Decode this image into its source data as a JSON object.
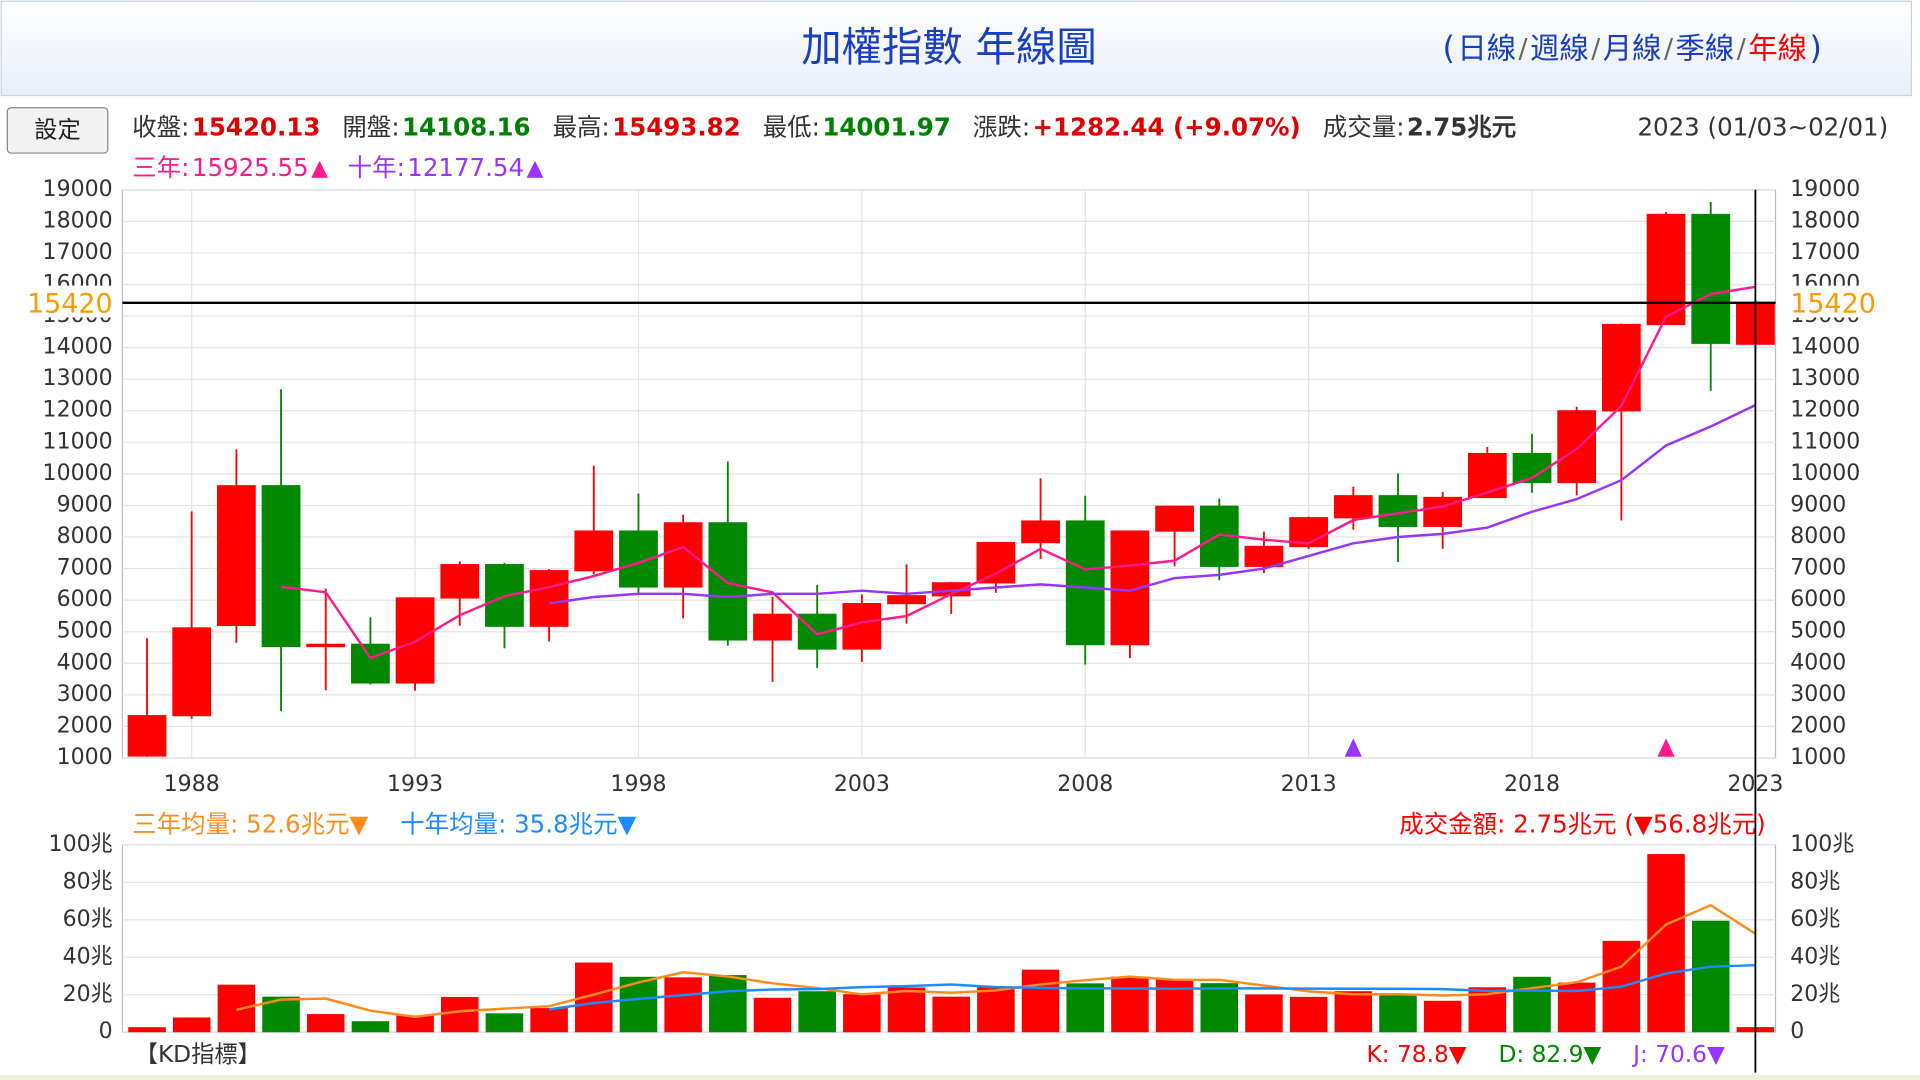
{
  "header": {
    "title": "加權指數 年線圖",
    "open": "(",
    "close": ")",
    "separator": "/",
    "links": [
      {
        "text": "日線",
        "color": "#1a3fbf"
      },
      {
        "text": "週線",
        "color": "#1a3fbf"
      },
      {
        "text": "月線",
        "color": "#1a3fbf"
      },
      {
        "text": "季線",
        "color": "#1a3fbf"
      },
      {
        "text": "年線",
        "color": "#ff0000"
      }
    ]
  },
  "settings_button": "設定",
  "quote": [
    {
      "label": "收盤:",
      "value": "15420.13",
      "color": "#e00000"
    },
    {
      "label": "開盤:",
      "value": "14108.16",
      "color": "#008000"
    },
    {
      "label": "最高:",
      "value": "15493.82",
      "color": "#e00000"
    },
    {
      "label": "最低:",
      "value": "14001.97",
      "color": "#008000"
    },
    {
      "label": "漲跌:",
      "value": "+1282.44  (+9.07%)",
      "color": "#e00000"
    },
    {
      "label": "成交量:",
      "value": "2.75兆元",
      "color": "#333333"
    }
  ],
  "date_range": "2023 (01/03~02/01)",
  "chart_data": [
    {
      "type": "candlestick",
      "ylim": [
        1000,
        19000
      ],
      "yticks": [
        1000,
        2000,
        3000,
        4000,
        5000,
        6000,
        7000,
        8000,
        9000,
        10000,
        11000,
        12000,
        13000,
        14000,
        15000,
        16000,
        17000,
        18000,
        19000
      ],
      "xlim": [
        1986.45,
        2023.45
      ],
      "xticks": [
        1988,
        1993,
        1998,
        2003,
        2008,
        2013,
        2018,
        2023
      ],
      "grid": true,
      "up_color": "#ff0000",
      "down_color": "#008800",
      "x": [
        1987,
        1988,
        1989,
        1990,
        1991,
        1992,
        1993,
        1994,
        1995,
        1996,
        1997,
        1998,
        1999,
        2000,
        2001,
        2002,
        2003,
        2004,
        2005,
        2006,
        2007,
        2008,
        2009,
        2010,
        2011,
        2012,
        2013,
        2014,
        2015,
        2016,
        2017,
        2018,
        2019,
        2020,
        2021,
        2022,
        2023
      ],
      "open": [
        1063,
        2341,
        5200,
        9624,
        4530,
        4600,
        3377,
        6070,
        7124,
        5173,
        6933,
        8187,
        6418,
        8448,
        4739,
        5551,
        4452,
        5890,
        6139,
        6548,
        7823,
        8506,
        4591,
        8188,
        8973,
        7072,
        7700,
        8611,
        9307,
        8338,
        9253,
        10643,
        9727,
        11997,
        14732,
        18218,
        14108
      ],
      "high": [
        4796,
        8813,
        10773,
        12682,
        6365,
        5459,
        6070,
        7228,
        7180,
        6982,
        10256,
        9378,
        8710,
        10393,
        6104,
        6484,
        6182,
        7135,
        6575,
        7823,
        9859,
        9309,
        8188,
        8990,
        9220,
        8170,
        8647,
        9593,
        10014,
        9430,
        10854,
        11270,
        12125,
        14760,
        18291,
        18619,
        15494
      ],
      "low": [
        1039,
        2241,
        4645,
        2485,
        3142,
        3327,
        3135,
        5194,
        4474,
        4690,
        6820,
        6219,
        5422,
        4555,
        3411,
        3850,
        4044,
        5255,
        5565,
        6232,
        7306,
        3955,
        4164,
        7071,
        6633,
        6857,
        7617,
        8230,
        7203,
        7627,
        9254,
        9400,
        9319,
        8523,
        14732,
        12629,
        14002
      ],
      "close": [
        2339,
        5119,
        9624,
        4530,
        4600,
        3377,
        6070,
        7124,
        5173,
        6933,
        8187,
        6418,
        8448,
        4739,
        5551,
        4452,
        5890,
        6139,
        6548,
        7823,
        8506,
        4591,
        8188,
        8973,
        7072,
        7700,
        8611,
        9307,
        8338,
        9253,
        10643,
        9727,
        11997,
        14732,
        18218,
        14137,
        15420
      ],
      "series": [
        {
          "name": "三年:",
          "value_text": "15925.55",
          "arrow": "▲",
          "color": "#ff1a8c",
          "x": [
            1990,
            1991,
            1992,
            1993,
            1994,
            1995,
            1996,
            1997,
            1998,
            1999,
            2000,
            2001,
            2002,
            2003,
            2004,
            2005,
            2006,
            2007,
            2008,
            2009,
            2010,
            2011,
            2012,
            2013,
            2014,
            2015,
            2016,
            2017,
            2018,
            2019,
            2020,
            2021,
            2022,
            2023
          ],
          "values": [
            6424,
            6251,
            4169,
            4682,
            5524,
            6122,
            6410,
            6764,
            7179,
            7684,
            6535,
            6246,
            4914,
            5298,
            5494,
            6192,
            6837,
            7626,
            6973,
            7095,
            7251,
            8078,
            7915,
            7794,
            8539,
            8752,
            8966,
            9411,
            9874,
            10789,
            12152,
            14982,
            15696,
            15925.55
          ]
        },
        {
          "name": "十年:",
          "value_text": "12177.54",
          "arrow": "▲",
          "color": "#9933ff",
          "x": [
            1996,
            1997,
            1998,
            1999,
            2000,
            2001,
            2002,
            2003,
            2004,
            2005,
            2006,
            2007,
            2008,
            2009,
            2010,
            2011,
            2012,
            2013,
            2014,
            2015,
            2016,
            2017,
            2018,
            2019,
            2020,
            2021,
            2022,
            2023
          ],
          "values": [
            5900,
            6100,
            6200,
            6200,
            6100,
            6200,
            6200,
            6300,
            6200,
            6300,
            6400,
            6500,
            6400,
            6300,
            6700,
            6800,
            7000,
            7400,
            7800,
            8000,
            8100,
            8300,
            8800,
            9200,
            9800,
            10900,
            11500,
            12177.54
          ]
        }
      ],
      "last_price": {
        "value": 15420.13,
        "label": "15420",
        "color": "#ff9900"
      },
      "cursor_x": 2023,
      "signals": [
        {
          "x": 2014,
          "color": "#9933ff"
        },
        {
          "x": 2021,
          "color": "#ff1a8c"
        }
      ]
    },
    {
      "type": "volume",
      "ylim": [
        0,
        100
      ],
      "yticks": [
        0,
        {
          "value": 20,
          "label": "20兆"
        },
        {
          "value": 40,
          "label": "40兆"
        },
        {
          "value": 60,
          "label": "60兆"
        },
        {
          "value": 80,
          "label": "80兆"
        },
        {
          "value": 100,
          "label": "100兆"
        }
      ],
      "x": [
        1987,
        1988,
        1989,
        1990,
        1991,
        1992,
        1993,
        1994,
        1995,
        1996,
        1997,
        1998,
        1999,
        2000,
        2001,
        2002,
        2003,
        2004,
        2005,
        2006,
        2007,
        2008,
        2009,
        2010,
        2011,
        2012,
        2013,
        2014,
        2015,
        2016,
        2017,
        2018,
        2019,
        2020,
        2021,
        2022,
        2023
      ],
      "values": [
        2.7,
        7.9,
        25.4,
        19,
        9.7,
        5.9,
        9,
        18.8,
        10.1,
        12.9,
        37.2,
        29.6,
        29.3,
        30.5,
        18.4,
        21.9,
        20.3,
        23.9,
        19,
        24,
        33.4,
        26.1,
        29.7,
        28.2,
        26.2,
        20.2,
        18.9,
        21.9,
        20.2,
        16.8,
        24,
        29.6,
        26.5,
        48.8,
        95.1,
        59.5,
        2.75
      ],
      "colors": [
        "#ff0000",
        "#ff0000",
        "#ff0000",
        "#008800",
        "#ff0000",
        "#008800",
        "#ff0000",
        "#ff0000",
        "#008800",
        "#ff0000",
        "#ff0000",
        "#008800",
        "#ff0000",
        "#008800",
        "#ff0000",
        "#008800",
        "#ff0000",
        "#ff0000",
        "#ff0000",
        "#ff0000",
        "#ff0000",
        "#008800",
        "#ff0000",
        "#ff0000",
        "#008800",
        "#ff0000",
        "#ff0000",
        "#ff0000",
        "#008800",
        "#ff0000",
        "#ff0000",
        "#008800",
        "#ff0000",
        "#ff0000",
        "#ff0000",
        "#008800",
        "#ff0000"
      ],
      "series": [
        {
          "name": "三年均量: 52.6兆元▼",
          "color": "#ff8c1a",
          "x": [
            1989,
            1990,
            1991,
            1992,
            1993,
            1994,
            1995,
            1996,
            1997,
            1998,
            1999,
            2000,
            2001,
            2002,
            2003,
            2004,
            2005,
            2006,
            2007,
            2008,
            2009,
            2010,
            2011,
            2012,
            2013,
            2014,
            2015,
            2016,
            2017,
            2018,
            2019,
            2020,
            2021,
            2022,
            2023
          ],
          "values": [
            12,
            17.4,
            18,
            11.5,
            8.2,
            11.2,
            12.6,
            13.9,
            20.1,
            26.6,
            32,
            29.8,
            26.1,
            23.6,
            20.2,
            22,
            21.1,
            22.3,
            25.5,
            27.8,
            29.7,
            28,
            28,
            24.9,
            21.8,
            20.3,
            20.3,
            19.6,
            20.3,
            23.5,
            26.7,
            35,
            57.5,
            67.8,
            52.6
          ]
        },
        {
          "name": "十年均量: 35.8兆元▼",
          "color": "#1a8cff",
          "x": [
            1996,
            1997,
            1998,
            1999,
            2000,
            2001,
            2002,
            2003,
            2004,
            2005,
            2006,
            2007,
            2008,
            2009,
            2010,
            2011,
            2012,
            2013,
            2014,
            2015,
            2016,
            2017,
            2018,
            2019,
            2020,
            2021,
            2022,
            2023
          ],
          "values": [
            12.2,
            15.6,
            17.8,
            19.8,
            21.9,
            22.8,
            23,
            24.1,
            24.6,
            25.5,
            24.1,
            23.7,
            23.4,
            23.4,
            23.2,
            23.4,
            23.4,
            23.3,
            23.2,
            23.2,
            23,
            22.1,
            22.3,
            22,
            24.3,
            31.4,
            35,
            35.8
          ]
        }
      ],
      "turnover_label": "成交金額: 2.75兆元 (▼56.8兆元)"
    }
  ],
  "kd": {
    "title": "【KD指標】",
    "items": [
      {
        "text": "K: 78.8▼",
        "color": "#ff0000"
      },
      {
        "text": "D: 82.9▼",
        "color": "#008800"
      },
      {
        "text": "J: 70.6▼",
        "color": "#9933ff"
      }
    ]
  }
}
